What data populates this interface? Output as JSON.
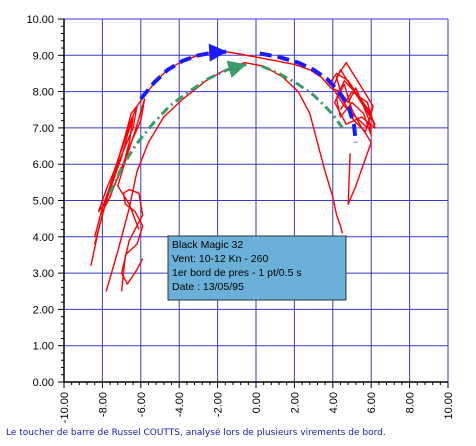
{
  "chart_data": {
    "type": "line",
    "title": "",
    "xlabel": "",
    "ylabel": "",
    "xlim": [
      -10,
      10
    ],
    "ylim": [
      0,
      10
    ],
    "grid": true,
    "x_ticks": [
      "-10.00",
      "-8.00",
      "-6.00",
      "-4.00",
      "-2.00",
      "0.00",
      "2.00",
      "4.00",
      "6.00",
      "8.00",
      "10.00"
    ],
    "y_ticks": [
      "0.00",
      "1.00",
      "2.00",
      "3.00",
      "4.00",
      "5.00",
      "6.00",
      "7.00",
      "8.00",
      "9.00",
      "10.00"
    ],
    "colors": {
      "trace": "#ff0000",
      "blue_arrow": "#1a1aff",
      "green_arrow": "#3a9a6a",
      "grid": "#3a3ac8",
      "infobox": "#6ab0d8"
    },
    "series": [
      {
        "style": "solid",
        "x": [
          -8.4,
          -8.0,
          -7.6,
          -7.2,
          -6.8,
          -6.5,
          -6.2,
          -5.8,
          -5.2,
          -4.6,
          -3.8,
          -3.0,
          -2.2,
          -1.6,
          -1.0,
          0.0,
          1.0,
          2.0,
          2.8,
          3.4,
          3.9,
          4.4,
          4.8,
          5.2,
          5.6,
          5.9,
          6.0,
          5.6,
          5.0,
          4.4,
          4.2,
          4.6,
          5.0,
          5.4,
          6.0,
          5.2,
          4.8,
          4.9
        ],
        "y": [
          3.8,
          4.6,
          5.4,
          6.1,
          6.8,
          7.4,
          7.6,
          7.9,
          8.3,
          8.6,
          8.85,
          9.0,
          9.1,
          9.1,
          9.05,
          8.95,
          8.85,
          8.75,
          8.6,
          8.4,
          8.1,
          8.0,
          7.7,
          8.1,
          7.6,
          7.2,
          6.8,
          7.4,
          7.7,
          7.3,
          7.8,
          8.2,
          7.5,
          7.1,
          6.6,
          5.4,
          4.9,
          6.3
        ]
      },
      {
        "style": "solid",
        "x": [
          -7.8,
          -7.2,
          -6.6,
          -6.2,
          -5.6,
          -4.8,
          -3.8,
          -2.6,
          -1.6,
          -0.6,
          0.4,
          1.4,
          2.2,
          2.8,
          3.2,
          3.6,
          4.0,
          4.2,
          4.4,
          4.5
        ],
        "y": [
          2.5,
          3.6,
          4.8,
          5.8,
          6.6,
          7.3,
          7.8,
          8.3,
          8.6,
          8.8,
          8.7,
          8.4,
          8.0,
          7.4,
          6.6,
          5.8,
          5.1,
          4.6,
          4.3,
          4.1
        ]
      },
      {
        "style": "solid",
        "x": [
          -8.6,
          -8.2,
          -7.8,
          -7.4,
          -7.0,
          -6.7,
          -6.4,
          -6.6,
          -6.9,
          -7.3,
          -7.7,
          -8.1,
          -8.4,
          -8.0,
          -7.6,
          -7.2,
          -6.8,
          -6.4,
          -6.2,
          -6.6,
          -7.0,
          -7.4,
          -7.8,
          -8.2,
          -7.6,
          -7.0,
          -6.5,
          -6.0,
          -5.8,
          -6.3,
          -6.8,
          -7.2,
          -6.6,
          -6.1
        ],
        "y": [
          3.2,
          4.2,
          5.0,
          5.6,
          6.2,
          6.8,
          7.3,
          6.6,
          6.0,
          5.5,
          5.0,
          4.6,
          4.0,
          4.8,
          5.4,
          6.0,
          6.5,
          7.0,
          7.6,
          7.1,
          6.4,
          5.8,
          5.3,
          4.7,
          5.1,
          5.9,
          6.6,
          7.2,
          7.8,
          6.9,
          6.1,
          5.4,
          4.9,
          4.2
        ]
      },
      {
        "style": "solid",
        "x": [
          -7.0,
          -6.8,
          -6.2,
          -5.9,
          -6.3,
          -6.8,
          -6.9,
          -6.6,
          -6.1,
          -5.9,
          -6.6,
          -7.0,
          -6.7,
          -6.2,
          -5.9
        ],
        "y": [
          2.5,
          3.5,
          3.8,
          4.3,
          4.7,
          4.9,
          5.2,
          5.3,
          5.2,
          4.6,
          3.9,
          3.0,
          2.7,
          3.1,
          3.4
        ]
      },
      {
        "style": "solid",
        "x": [
          3.8,
          4.2,
          4.8,
          5.3,
          5.8,
          6.2,
          5.6,
          5.0,
          4.4,
          4.0,
          4.6,
          5.2,
          5.8,
          6.1,
          5.4,
          4.7,
          4.2,
          4.5,
          5.1,
          5.7,
          6.0,
          5.3,
          4.6,
          4.1,
          4.7,
          5.5,
          6.2,
          5.8,
          5.0,
          4.4
        ],
        "y": [
          8.2,
          8.5,
          8.3,
          7.9,
          7.5,
          7.1,
          7.6,
          8.1,
          8.6,
          8.1,
          7.6,
          7.3,
          7.0,
          7.6,
          8.2,
          8.8,
          8.4,
          7.8,
          7.2,
          6.9,
          7.4,
          7.9,
          8.3,
          7.7,
          7.1,
          7.3,
          7.0,
          7.7,
          8.0,
          7.5
        ]
      },
      {
        "style": "dashed",
        "color": "#1a1aff",
        "arrow": "end",
        "x": [
          -6.0,
          -5.3,
          -4.6,
          -3.8,
          -3.0,
          -2.2,
          -1.5
        ],
        "y": [
          7.8,
          8.25,
          8.6,
          8.85,
          9.0,
          9.08,
          9.1
        ]
      },
      {
        "style": "dashed",
        "color": "#1a1aff",
        "x": [
          0.2,
          1.2,
          2.2,
          3.0,
          3.7,
          4.3,
          4.8,
          5.1,
          5.2
        ],
        "y": [
          9.05,
          8.95,
          8.8,
          8.6,
          8.35,
          8.0,
          7.6,
          7.1,
          6.6
        ]
      },
      {
        "style": "dashdot",
        "color": "#3a9a6a",
        "arrow": "end",
        "x": [
          -7.6,
          -7.0,
          -6.3,
          -5.4,
          -4.5,
          -3.5,
          -2.5,
          -1.5,
          -0.5
        ],
        "y": [
          5.2,
          5.9,
          6.5,
          7.1,
          7.6,
          8.0,
          8.35,
          8.6,
          8.75
        ]
      },
      {
        "style": "dashdot",
        "color": "#3a9a6a",
        "x": [
          0.3,
          1.2,
          2.2,
          3.0,
          3.6,
          4.1,
          4.5
        ],
        "y": [
          8.7,
          8.5,
          8.2,
          7.9,
          7.6,
          7.3,
          7.0
        ]
      }
    ],
    "annotation": {
      "lines": [
        "Black Magic 32",
        "Vent: 10-12 Kn - 260",
        "1er bord de pres - 1 pt/0.5 s",
        "Date : 13/05/95"
      ]
    }
  },
  "caption": "Le toucher de barre de Russel COUTTS, analysé lors de plusieurs virements de bord."
}
